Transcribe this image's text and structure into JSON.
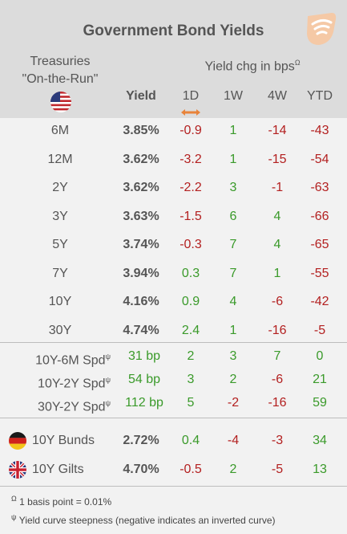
{
  "title": "Government Bond Yields",
  "logo_icon": "wifi-wave-icon",
  "treasuries_line1": "Treasuries",
  "treasuries_line2": "\"On-the-Run\"",
  "yield_chg_label": "Yield chg in bps",
  "yield_chg_mark": "Ω",
  "columns": {
    "yield": "Yield",
    "d1": "1D",
    "w1": "1W",
    "w4": "4W",
    "ytd": "YTD"
  },
  "treasuries": [
    {
      "tenor": "6M",
      "yield": "3.85%",
      "d1": "-0.9",
      "w1": "1",
      "w4": "-14",
      "ytd": "-43"
    },
    {
      "tenor": "12M",
      "yield": "3.62%",
      "d1": "-3.2",
      "w1": "1",
      "w4": "-15",
      "ytd": "-54"
    },
    {
      "tenor": "2Y",
      "yield": "3.62%",
      "d1": "-2.2",
      "w1": "3",
      "w4": "-1",
      "ytd": "-63"
    },
    {
      "tenor": "3Y",
      "yield": "3.63%",
      "d1": "-1.5",
      "w1": "6",
      "w4": "4",
      "ytd": "-66"
    },
    {
      "tenor": "5Y",
      "yield": "3.74%",
      "d1": "-0.3",
      "w1": "7",
      "w4": "4",
      "ytd": "-65"
    },
    {
      "tenor": "7Y",
      "yield": "3.94%",
      "d1": "0.3",
      "w1": "7",
      "w4": "1",
      "ytd": "-55"
    },
    {
      "tenor": "10Y",
      "yield": "4.16%",
      "d1": "0.9",
      "w1": "4",
      "w4": "-6",
      "ytd": "-42"
    },
    {
      "tenor": "30Y",
      "yield": "4.74%",
      "d1": "2.4",
      "w1": "1",
      "w4": "-16",
      "ytd": "-5"
    }
  ],
  "spreads": [
    {
      "label": "10Y-6M Spd",
      "mark": "ψ",
      "yield": "31 bp",
      "d1": "2",
      "w1": "3",
      "w4": "7",
      "ytd": "0"
    },
    {
      "label": "10Y-2Y Spd",
      "mark": "ψ",
      "yield": "54 bp",
      "d1": "3",
      "w1": "2",
      "w4": "-6",
      "ytd": "21"
    },
    {
      "label": "30Y-2Y Spd",
      "mark": "ψ",
      "yield": "112 bp",
      "d1": "5",
      "w1": "-2",
      "w4": "-16",
      "ytd": "59"
    }
  ],
  "international": [
    {
      "flag": "germany-flag-icon",
      "label": "10Y Bunds",
      "yield": "2.72%",
      "d1": "0.4",
      "w1": "-4",
      "w4": "-3",
      "ytd": "34"
    },
    {
      "flag": "uk-flag-icon",
      "label": "10Y Gilts",
      "yield": "4.70%",
      "d1": "-0.5",
      "w1": "2",
      "w4": "-5",
      "ytd": "13"
    }
  ],
  "footnotes": [
    {
      "mark": "Ω",
      "text": "1 basis point = 0.01%"
    },
    {
      "mark": "ψ",
      "text": "Yield curve steepness (negative indicates an inverted curve)"
    }
  ],
  "colors": {
    "positive": "#3a9a2a",
    "negative": "#b32020",
    "accent_orange": "#e8833a",
    "header_bg": "#dcdcdc",
    "body_bg": "#f2f2f2"
  }
}
